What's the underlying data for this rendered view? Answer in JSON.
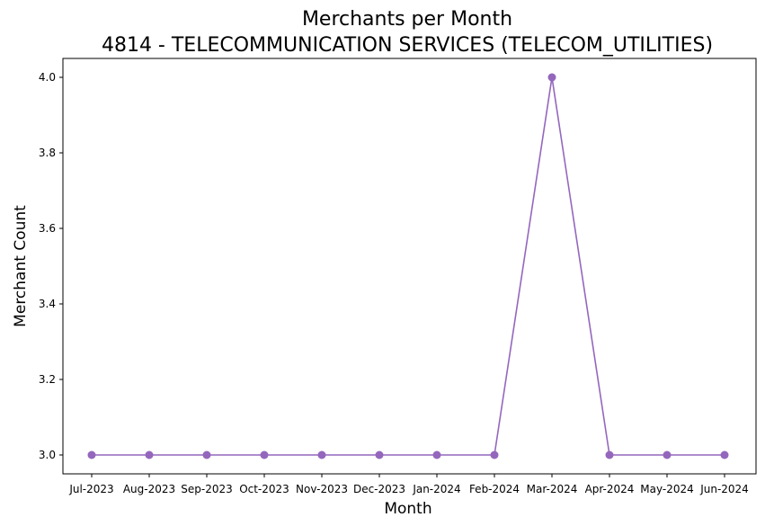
{
  "chart_data": {
    "type": "line",
    "title": "Merchants per Month",
    "subtitle": "4814 - TELECOMMUNICATION SERVICES (TELECOM_UTILITIES)",
    "xlabel": "Month",
    "ylabel": "Merchant Count",
    "categories": [
      "Jul-2023",
      "Aug-2023",
      "Sep-2023",
      "Oct-2023",
      "Nov-2023",
      "Dec-2023",
      "Jan-2024",
      "Feb-2024",
      "Mar-2024",
      "Apr-2024",
      "May-2024",
      "Jun-2024"
    ],
    "series": [
      {
        "values": [
          3,
          3,
          3,
          3,
          3,
          3,
          3,
          3,
          4,
          3,
          3,
          3
        ],
        "color": "#9467bd",
        "marker": "circle"
      }
    ],
    "yticks": [
      3.0,
      3.2,
      3.4,
      3.6,
      3.8,
      4.0
    ],
    "ytick_labels": [
      "3.0",
      "3.2",
      "3.4",
      "3.6",
      "3.8",
      "4.0"
    ],
    "ylim": [
      2.95,
      4.05
    ],
    "grid": false,
    "legend": "none"
  }
}
